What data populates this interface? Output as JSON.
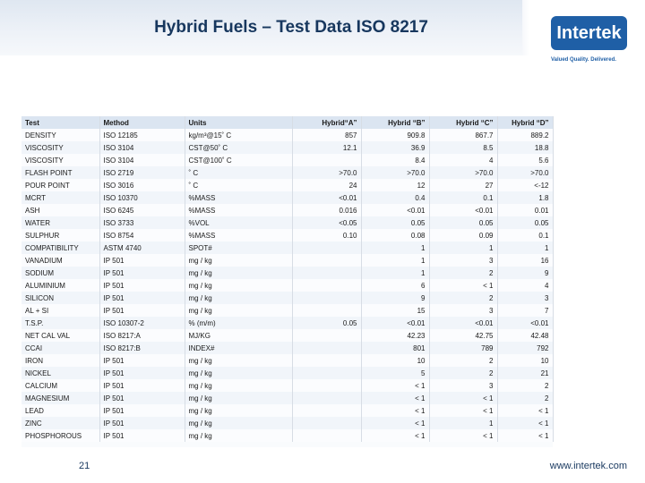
{
  "slide": {
    "title": "Hybrid Fuels – Test Data ISO 8217",
    "page_number": "21",
    "footer_url": "www.intertek.com"
  },
  "brand": {
    "logo_text": "Intertek",
    "tagline": "Valued Quality. Delivered.",
    "color": "#1f5fa6"
  },
  "table": {
    "headers": [
      "Test",
      "Method",
      "Units",
      "Hybrid“A”",
      "Hybrid “B”",
      "Hybrid “C”",
      "Hybrid “D”"
    ],
    "rows": [
      [
        "DENSITY",
        "ISO 12185",
        "kg/m³@15˚ C",
        "857",
        "909.8",
        "867.7",
        "889.2"
      ],
      [
        "VISCOSITY",
        "ISO 3104",
        "CST@50˚ C",
        "12.1",
        "36.9",
        "8.5",
        "18.8"
      ],
      [
        "VISCOSITY",
        "ISO 3104",
        "CST@100˚ C",
        "",
        "8.4",
        "4",
        "5.6"
      ],
      [
        "FLASH POINT",
        "ISO 2719",
        "˚ C",
        ">70.0",
        ">70.0",
        ">70.0",
        ">70.0"
      ],
      [
        "POUR POINT",
        "ISO 3016",
        "˚ C",
        "24",
        "12",
        "27",
        "<-12"
      ],
      [
        "MCRT",
        "ISO 10370",
        "%MASS",
        "<0.01",
        "0.4",
        "0.1",
        "1.8"
      ],
      [
        "ASH",
        "ISO 6245",
        "%MASS",
        "0.016",
        "<0.01",
        "<0.01",
        "0.01"
      ],
      [
        "WATER",
        "ISO 3733",
        "%VOL",
        "<0.05",
        "0.05",
        "0.05",
        "0.05"
      ],
      [
        "SULPHUR",
        "ISO 8754",
        "%MASS",
        "0.10",
        "0.08",
        "0.09",
        "0.1"
      ],
      [
        "COMPATIBILITY",
        "ASTM 4740",
        "SPOT#",
        "",
        "1",
        "1",
        "1"
      ],
      [
        "VANADIUM",
        "IP 501",
        "mg / kg",
        "",
        "1",
        "3",
        "16"
      ],
      [
        "SODIUM",
        "IP 501",
        "mg / kg",
        "",
        "1",
        "2",
        "9"
      ],
      [
        "ALUMINIUM",
        "IP 501",
        "mg / kg",
        "",
        "6",
        "< 1",
        "4"
      ],
      [
        "SILICON",
        "IP 501",
        "mg / kg",
        "",
        "9",
        "2",
        "3"
      ],
      [
        "AL + SI",
        "IP 501",
        "mg / kg",
        "",
        "15",
        "3",
        "7"
      ],
      [
        "T.S.P.",
        "ISO 10307-2",
        "% (m/m)",
        "0.05",
        "<0.01",
        "<0.01",
        "<0.01"
      ],
      [
        "NET CAL VAL",
        "ISO 8217:A",
        "MJ/KG",
        "",
        "42.23",
        "42.75",
        "42.48"
      ],
      [
        "CCAI",
        "ISO 8217:B",
        "INDEX#",
        "",
        "801",
        "789",
        "792"
      ],
      [
        "IRON",
        "IP 501",
        "mg / kg",
        "",
        "10",
        "2",
        "10"
      ],
      [
        "NICKEL",
        "IP 501",
        "mg / kg",
        "",
        "5",
        "2",
        "21"
      ],
      [
        "CALCIUM",
        "IP 501",
        "mg / kg",
        "",
        "< 1",
        "3",
        "2"
      ],
      [
        "MAGNESIUM",
        "IP 501",
        "mg / kg",
        "",
        "< 1",
        "< 1",
        "2"
      ],
      [
        "LEAD",
        "IP 501",
        "mg / kg",
        "",
        "< 1",
        "< 1",
        "< 1"
      ],
      [
        "ZINC",
        "IP 501",
        "mg / kg",
        "",
        "< 1",
        "1",
        "< 1"
      ],
      [
        "PHOSPHOROUS",
        "IP 501",
        "mg / kg",
        "",
        "< 1",
        "< 1",
        "< 1"
      ]
    ]
  }
}
